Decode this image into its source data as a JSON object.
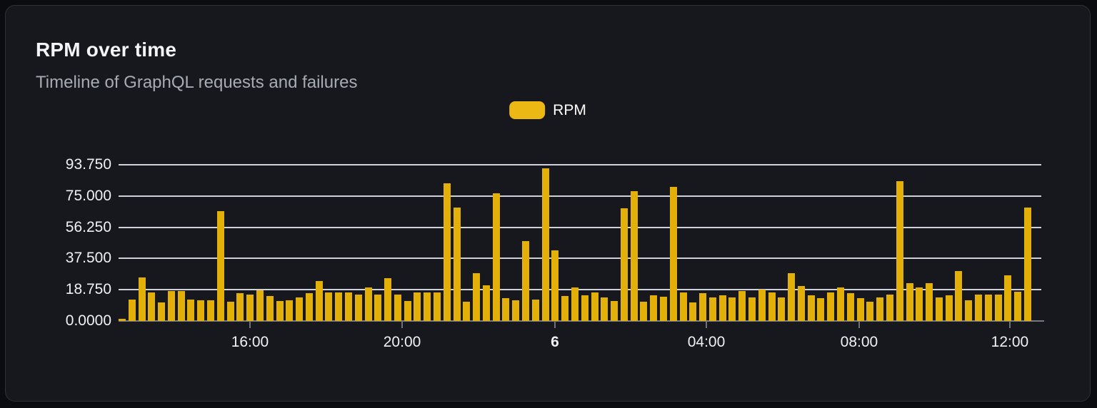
{
  "header": {
    "title": "RPM over time",
    "subtitle": "Timeline of GraphQL requests and failures"
  },
  "legend": {
    "items": [
      {
        "label": "RPM",
        "color": "#ECB813"
      }
    ]
  },
  "colors": {
    "page_background": "#0B0C0F",
    "card_background": "#16181D",
    "card_border": "#2E3138",
    "bar": "#E3B009",
    "gridline": "#DFE3EA",
    "axis_line": "#75787E",
    "axis_text": "#EFF1F4",
    "title_text": "#F4F5F7",
    "subtitle_text": "#A7ACB4"
  },
  "chart_data": {
    "type": "bar",
    "title": "RPM over time",
    "subtitle": "Timeline of GraphQL requests and failures",
    "xlabel": "",
    "ylabel": "",
    "grid": true,
    "legend_position": "top-center",
    "ylim": [
      0,
      93.75
    ],
    "y_axis": {
      "max": 93.75,
      "ticks": [
        {
          "label": "0.0000",
          "value": 0
        },
        {
          "label": "18.750",
          "value": 18.75
        },
        {
          "label": "37.500",
          "value": 37.5
        },
        {
          "label": "56.250",
          "value": 56.25
        },
        {
          "label": "75.000",
          "value": 75
        },
        {
          "label": "93.750",
          "value": 93.75
        }
      ]
    },
    "x_axis": {
      "tick_labels": [
        {
          "label": "16:00",
          "pct": 14.24,
          "emphasis": false
        },
        {
          "label": "20:00",
          "pct": 30.73,
          "emphasis": false
        },
        {
          "label": "6",
          "pct": 47.29,
          "emphasis": true
        },
        {
          "label": "04:00",
          "pct": 63.7,
          "emphasis": false
        },
        {
          "label": "08:00",
          "pct": 80.26,
          "emphasis": false
        },
        {
          "label": "12:00",
          "pct": 96.59,
          "emphasis": false
        }
      ]
    },
    "series": [
      {
        "name": "RPM",
        "color": "#E3B009",
        "values": [
          1.5,
          13,
          26,
          17,
          11,
          18,
          18,
          13,
          12.5,
          12.5,
          66,
          11.5,
          16.5,
          16,
          18.5,
          15,
          12,
          12.5,
          14,
          16.5,
          24,
          17,
          17,
          17,
          16,
          20,
          16,
          25.5,
          16,
          12,
          17,
          17,
          17,
          82.5,
          68,
          11.5,
          28.5,
          21.5,
          76.5,
          13.5,
          12.5,
          48,
          13,
          91.5,
          42.5,
          15,
          20,
          15.5,
          17,
          14,
          12,
          67.5,
          78,
          11.5,
          15.5,
          14.5,
          80.5,
          17,
          11,
          16.5,
          14,
          15.5,
          14,
          18,
          14,
          19,
          17,
          14,
          28.5,
          21,
          15.5,
          13.5,
          17,
          20,
          16.5,
          13.5,
          11.5,
          14,
          16,
          84,
          22.5,
          20,
          22.5,
          14,
          15.5,
          30,
          12.5,
          16,
          16,
          16,
          27.5,
          17.5,
          68
        ]
      }
    ]
  }
}
